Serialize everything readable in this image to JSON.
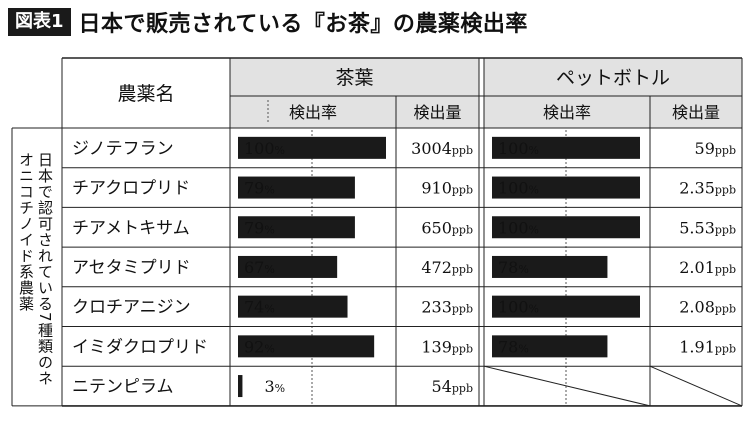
{
  "title": {
    "badge": "図表1",
    "text": "日本で販売されている『お茶』の農薬検出率"
  },
  "colors": {
    "bar": "#1a1a1a",
    "header_bg": "#e2e2e2",
    "text": "#111111"
  },
  "side_label": "日本で認可されている7種類のネオニコチノイド系農薬",
  "table": {
    "name_header": "農薬名",
    "groups": [
      {
        "label": "茶葉",
        "col_rate": "検出率",
        "col_amount": "検出量"
      },
      {
        "label": "ペットボトル",
        "col_rate": "検出率",
        "col_amount": "検出量"
      }
    ]
  },
  "chart_data": {
    "type": "table",
    "unit": "ppb",
    "rows": [
      {
        "name": "ジノテフラン",
        "tea_rate": 100,
        "tea_amount": "3004",
        "bottle_rate": 100,
        "bottle_amount": "59"
      },
      {
        "name": "チアクロプリド",
        "tea_rate": 79,
        "tea_amount": "910",
        "bottle_rate": 100,
        "bottle_amount": "2.35"
      },
      {
        "name": "チアメトキサム",
        "tea_rate": 79,
        "tea_amount": "650",
        "bottle_rate": 100,
        "bottle_amount": "5.53"
      },
      {
        "name": "アセタミプリド",
        "tea_rate": 67,
        "tea_amount": "472",
        "bottle_rate": 78,
        "bottle_amount": "2.01"
      },
      {
        "name": "クロチアニジン",
        "tea_rate": 74,
        "tea_amount": "233",
        "bottle_rate": 100,
        "bottle_amount": "2.08"
      },
      {
        "name": "イミダクロプリド",
        "tea_rate": 92,
        "tea_amount": "139",
        "bottle_rate": 78,
        "bottle_amount": "1.91"
      },
      {
        "name": "ニテンピラム",
        "tea_rate": 3,
        "tea_amount": "54",
        "bottle_rate": null,
        "bottle_amount": null
      }
    ]
  }
}
